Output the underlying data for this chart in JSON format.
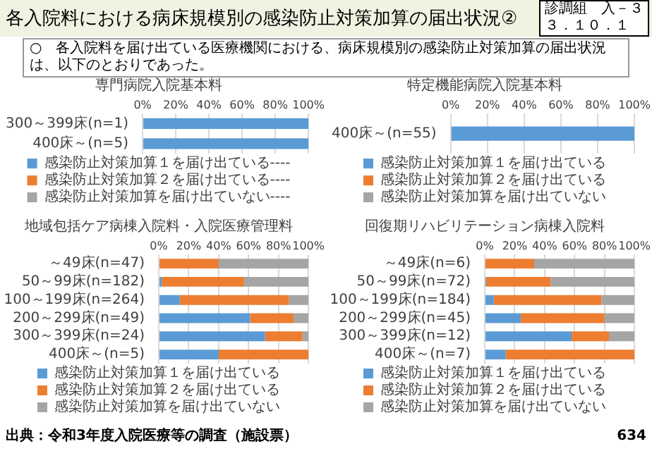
{
  "chart_data": [
    {
      "type": "other",
      "title": "各入院料における病床規模別の感染防止対策加算の届出状況②",
      "annotations": [
        "診調組　入－３",
        "３．１０．１",
        "○　各入院料を届け出ている医療機関における、病床規模別の感染防止対策加算の届出状況は、以下のとおりであった。",
        "出典：令和3年度入院医療等の調査（施設票）",
        "634"
      ]
    },
    {
      "type": "bar",
      "title": "専門病院入院基本料",
      "orientation": "horizontal",
      "stacked": true,
      "grid": "x",
      "legend": "bottom",
      "categories": [
        "300～399床(n=1)",
        "400床～(n=5)"
      ],
      "series": [
        {
          "name": "感染防止対策加算１を届け出ている‐‐‐‐",
          "color": "#5b9bd5",
          "values": [
            100,
            100
          ]
        },
        {
          "name": "感染防止対策加算２を届け出ている‐‐‐‐",
          "color": "#ed7d31",
          "values": [
            0,
            0
          ]
        },
        {
          "name": "感染防止対策加算を届け出ていない‐‐‐‐",
          "color": "#a5a5a5",
          "values": [
            0,
            0
          ]
        }
      ],
      "xlim": [
        0,
        100
      ],
      "xticks": [
        {
          "value": 0,
          "label": "0%"
        },
        {
          "value": 20,
          "label": "20%"
        },
        {
          "value": 40,
          "label": "40%"
        },
        {
          "value": 60,
          "label": "60%"
        },
        {
          "value": 80,
          "label": "80%"
        },
        {
          "value": 100,
          "label": "100%"
        }
      ]
    },
    {
      "type": "bar",
      "title": "特定機能病院入院基本料",
      "orientation": "horizontal",
      "stacked": true,
      "grid": "x",
      "legend": "bottom",
      "categories": [
        "400床～(n=55)"
      ],
      "series": [
        {
          "name": "感染防止対策加算１を届け出ている",
          "color": "#5b9bd5",
          "values": [
            100
          ]
        },
        {
          "name": "感染防止対策加算２を届け出ている",
          "color": "#ed7d31",
          "values": [
            0
          ]
        },
        {
          "name": "感染防止対策加算を届け出ていない",
          "color": "#a5a5a5",
          "values": [
            0
          ]
        }
      ],
      "xlim": [
        0,
        100
      ],
      "xticks": [
        {
          "value": 0,
          "label": "0%"
        },
        {
          "value": 20,
          "label": "20%"
        },
        {
          "value": 40,
          "label": "40%"
        },
        {
          "value": 60,
          "label": "60%"
        },
        {
          "value": 80,
          "label": "80%"
        },
        {
          "value": 100,
          "label": "100%"
        }
      ]
    },
    {
      "type": "bar",
      "title": "地域包括ケア病棟入院料・入院医療管理料",
      "orientation": "horizontal",
      "stacked": true,
      "grid": "x",
      "legend": "bottom",
      "categories": [
        "～49床(n=47)",
        "50～99床(n=182)",
        "100～199床(n=264)",
        "200～299床(n=49)",
        "300～399床(n=24)",
        "400床～(n=5)"
      ],
      "series": [
        {
          "name": "感染防止対策加算１を届け出ている",
          "color": "#5b9bd5",
          "values": [
            0,
            2,
            14,
            61,
            71,
            40
          ]
        },
        {
          "name": "感染防止対策加算２を届け出ている",
          "color": "#ed7d31",
          "values": [
            40,
            55,
            73,
            29,
            25,
            60
          ]
        },
        {
          "name": "感染防止対策加算を届け出ていない",
          "color": "#a5a5a5",
          "values": [
            60,
            43,
            13,
            10,
            4,
            0
          ]
        }
      ],
      "xlim": [
        0,
        100
      ],
      "xticks": [
        {
          "value": 0,
          "label": "0%"
        },
        {
          "value": 20,
          "label": "20%"
        },
        {
          "value": 40,
          "label": "40%"
        },
        {
          "value": 60,
          "label": "60%"
        },
        {
          "value": 80,
          "label": "80%"
        },
        {
          "value": 100,
          "label": "100%"
        }
      ]
    },
    {
      "type": "bar",
      "title": "回復期リハビリテーション病棟入院料",
      "orientation": "horizontal",
      "stacked": true,
      "grid": "x",
      "legend": "bottom",
      "categories": [
        "～49床(n=6)",
        "50～99床(n=72)",
        "100～199床(n=184)",
        "200～299床(n=45)",
        "300～399床(n=12)",
        "400床～(n=7)"
      ],
      "series": [
        {
          "name": "感染防止対策加算１を届け出ている",
          "color": "#5b9bd5",
          "values": [
            0,
            1,
            6,
            24,
            58,
            14
          ]
        },
        {
          "name": "感染防止対策加算２を届け出ている",
          "color": "#ed7d31",
          "values": [
            33,
            43,
            72,
            56,
            25,
            86
          ]
        },
        {
          "name": "感染防止対策加算を届け出ていない",
          "color": "#a5a5a5",
          "values": [
            67,
            56,
            22,
            20,
            17,
            0
          ]
        }
      ],
      "xlim": [
        0,
        100
      ],
      "xticks": [
        {
          "value": 0,
          "label": "0%"
        },
        {
          "value": 20,
          "label": "20%"
        },
        {
          "value": 40,
          "label": "40%"
        },
        {
          "value": 60,
          "label": "60%"
        },
        {
          "value": 80,
          "label": "80%"
        },
        {
          "value": 100,
          "label": "100%"
        }
      ]
    }
  ]
}
